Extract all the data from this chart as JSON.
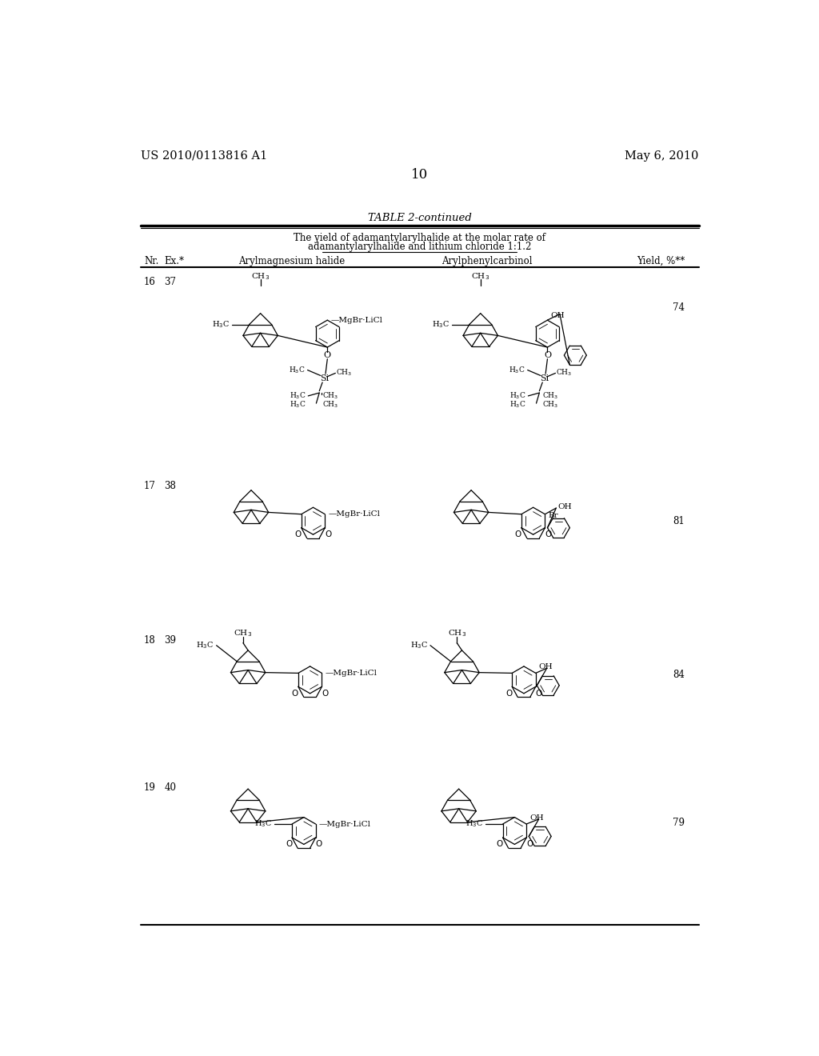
{
  "page_number": "10",
  "patent_number": "US 2010/0113816 A1",
  "patent_date": "May 6, 2010",
  "table_title": "TABLE 2-continued",
  "table_subtitle1": "The yield of adamantylarylhalide at the molar rate of",
  "table_subtitle2": "adamantylarylhalide and lithium chloride 1:1.2",
  "col_headers": [
    "Nr.",
    "Ex.*",
    "Arylmagnesium halide",
    "Arylphenylcarbinol",
    "Yield, %**"
  ],
  "rows": [
    {
      "nr": "16",
      "ex": "37",
      "yield": "74"
    },
    {
      "nr": "17",
      "ex": "38",
      "yield": "81"
    },
    {
      "nr": "18",
      "ex": "39",
      "yield": "84"
    },
    {
      "nr": "19",
      "ex": "40",
      "yield": "79"
    }
  ],
  "background_color": "#ffffff",
  "text_color": "#000000"
}
